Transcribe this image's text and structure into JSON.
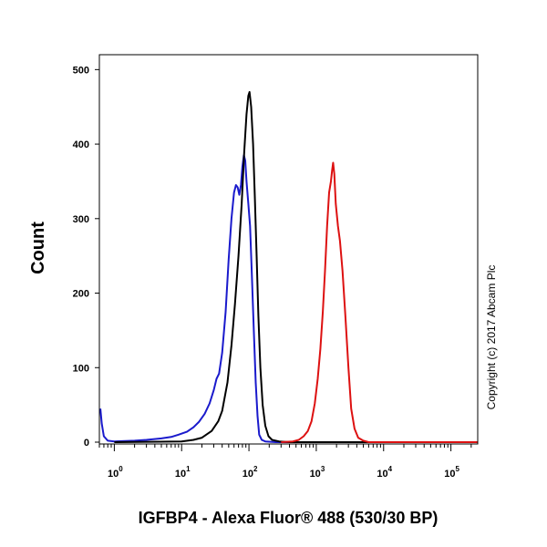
{
  "chart_data": {
    "type": "line",
    "xlabel": "IGFBP4 - Alexa Fluor® 488 (530/30 BP)",
    "ylabel": "Count",
    "x_scale": "log",
    "xlim": [
      0.6,
      250000
    ],
    "ylim": [
      0,
      520
    ],
    "x_ticks": [
      {
        "value": 1,
        "base": "10",
        "exp": "0"
      },
      {
        "value": 10,
        "base": "10",
        "exp": "1"
      },
      {
        "value": 100,
        "base": "10",
        "exp": "2"
      },
      {
        "value": 1000,
        "base": "10",
        "exp": "3"
      },
      {
        "value": 10000,
        "base": "10",
        "exp": "4"
      },
      {
        "value": 100000,
        "base": "10",
        "exp": "5"
      }
    ],
    "y_ticks": [
      0,
      100,
      200,
      300,
      400,
      500
    ],
    "grid": false,
    "annotation": "Copyright (c) 2017 Abcam Plc",
    "series": [
      {
        "color": "#1a1acc",
        "points": [
          [
            0.62,
            45
          ],
          [
            0.65,
            25
          ],
          [
            0.7,
            8
          ],
          [
            0.8,
            2
          ],
          [
            1,
            1
          ],
          [
            2,
            2
          ],
          [
            3,
            3
          ],
          [
            5,
            5
          ],
          [
            7,
            7
          ],
          [
            9,
            10
          ],
          [
            12,
            14
          ],
          [
            15,
            20
          ],
          [
            18,
            27
          ],
          [
            22,
            38
          ],
          [
            26,
            52
          ],
          [
            30,
            70
          ],
          [
            33,
            85
          ],
          [
            36,
            92
          ],
          [
            40,
            120
          ],
          [
            45,
            175
          ],
          [
            50,
            245
          ],
          [
            55,
            300
          ],
          [
            60,
            335
          ],
          [
            64,
            345
          ],
          [
            68,
            342
          ],
          [
            72,
            332
          ],
          [
            76,
            345
          ],
          [
            80,
            370
          ],
          [
            84,
            385
          ],
          [
            88,
            378
          ],
          [
            92,
            350
          ],
          [
            98,
            320
          ],
          [
            104,
            290
          ],
          [
            110,
            230
          ],
          [
            118,
            150
          ],
          [
            126,
            80
          ],
          [
            134,
            35
          ],
          [
            142,
            10
          ],
          [
            155,
            3
          ],
          [
            175,
            1
          ],
          [
            250,
            0
          ],
          [
            250000,
            0
          ]
        ]
      },
      {
        "color": "#000000",
        "points": [
          [
            1,
            0
          ],
          [
            10,
            1
          ],
          [
            15,
            3
          ],
          [
            20,
            6
          ],
          [
            28,
            15
          ],
          [
            35,
            28
          ],
          [
            40,
            42
          ],
          [
            48,
            80
          ],
          [
            55,
            130
          ],
          [
            62,
            185
          ],
          [
            70,
            250
          ],
          [
            78,
            320
          ],
          [
            85,
            390
          ],
          [
            92,
            440
          ],
          [
            98,
            465
          ],
          [
            102,
            470
          ],
          [
            108,
            450
          ],
          [
            115,
            400
          ],
          [
            122,
            330
          ],
          [
            130,
            250
          ],
          [
            138,
            170
          ],
          [
            148,
            100
          ],
          [
            160,
            50
          ],
          [
            175,
            22
          ],
          [
            195,
            8
          ],
          [
            220,
            3
          ],
          [
            280,
            1
          ],
          [
            400,
            0
          ],
          [
            250000,
            0
          ]
        ]
      },
      {
        "color": "#dd1111",
        "points": [
          [
            300,
            0
          ],
          [
            450,
            1
          ],
          [
            550,
            3
          ],
          [
            650,
            8
          ],
          [
            750,
            15
          ],
          [
            850,
            28
          ],
          [
            950,
            52
          ],
          [
            1050,
            85
          ],
          [
            1150,
            125
          ],
          [
            1250,
            175
          ],
          [
            1350,
            230
          ],
          [
            1450,
            290
          ],
          [
            1550,
            335
          ],
          [
            1650,
            350
          ],
          [
            1720,
            365
          ],
          [
            1780,
            375
          ],
          [
            1850,
            360
          ],
          [
            1950,
            320
          ],
          [
            2100,
            290
          ],
          [
            2250,
            270
          ],
          [
            2450,
            230
          ],
          [
            2700,
            170
          ],
          [
            3000,
            100
          ],
          [
            3300,
            45
          ],
          [
            3700,
            18
          ],
          [
            4200,
            6
          ],
          [
            5000,
            2
          ],
          [
            6000,
            0
          ],
          [
            250000,
            0
          ]
        ]
      }
    ]
  }
}
